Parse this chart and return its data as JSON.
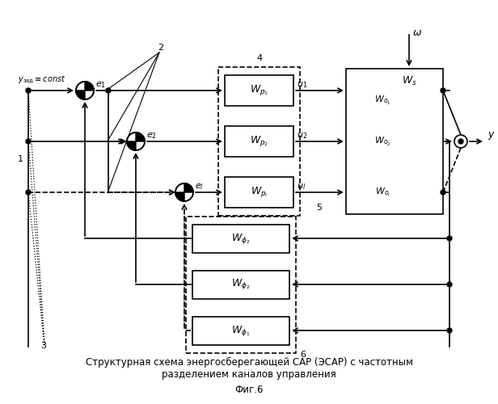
{
  "title_line1": "Структурная схема энергосберегающей САР (ЭСАР) с частотным",
  "title_line2": "разделением каналов управления",
  "title_line3": "Фиг.6",
  "bg_color": "#ffffff",
  "line_color": "#000000",
  "figsize": [
    6.16,
    5.0
  ],
  "dpi": 100
}
